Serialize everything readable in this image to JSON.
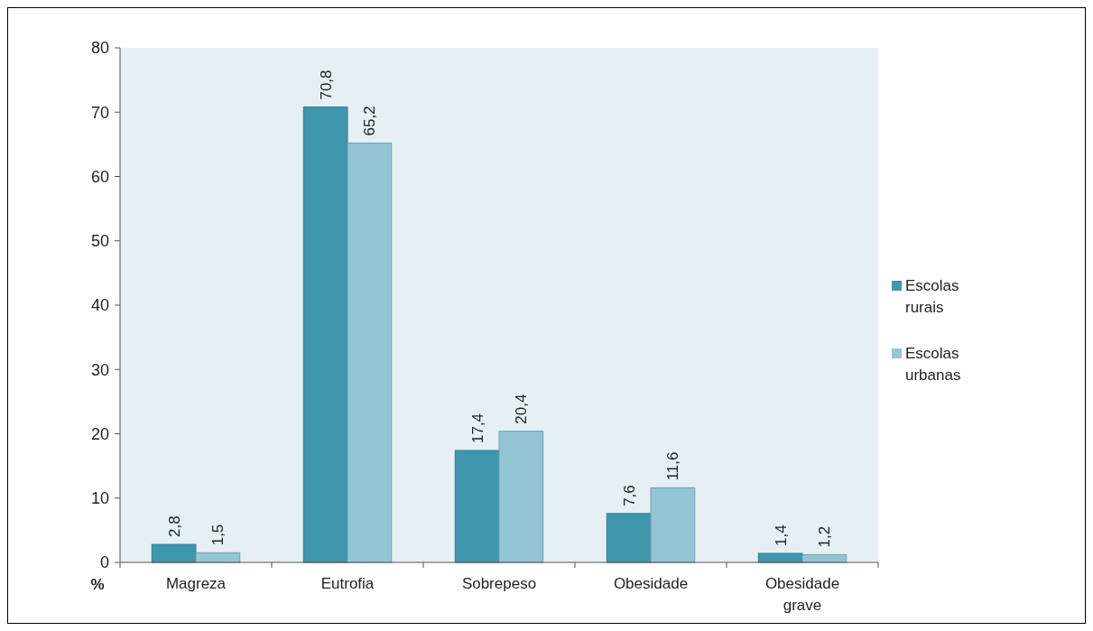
{
  "chart_data": {
    "type": "bar",
    "ylabel": "%",
    "categories": [
      "Magreza",
      "Eutrofia",
      "Sobrepeso",
      "Obesidade",
      "Obesidade grave"
    ],
    "series": [
      {
        "name": "Escolas rurais",
        "color": "#3f97ae",
        "values": [
          2.8,
          70.8,
          17.4,
          7.6,
          1.4
        ],
        "value_labels": [
          "2,8",
          "70,8",
          "17,4",
          "7,6",
          "1,4"
        ]
      },
      {
        "name": "Escolas urbanas",
        "color": "#93c5d5",
        "values": [
          1.5,
          65.2,
          20.4,
          11.6,
          1.2
        ],
        "value_labels": [
          "1,5",
          "65,2",
          "20,4",
          "11,6",
          "1,2"
        ]
      }
    ],
    "ylim": [
      0,
      80
    ],
    "yticks": [
      0,
      10,
      20,
      30,
      40,
      50,
      60,
      70,
      80
    ],
    "grid": false,
    "legend": "right"
  }
}
